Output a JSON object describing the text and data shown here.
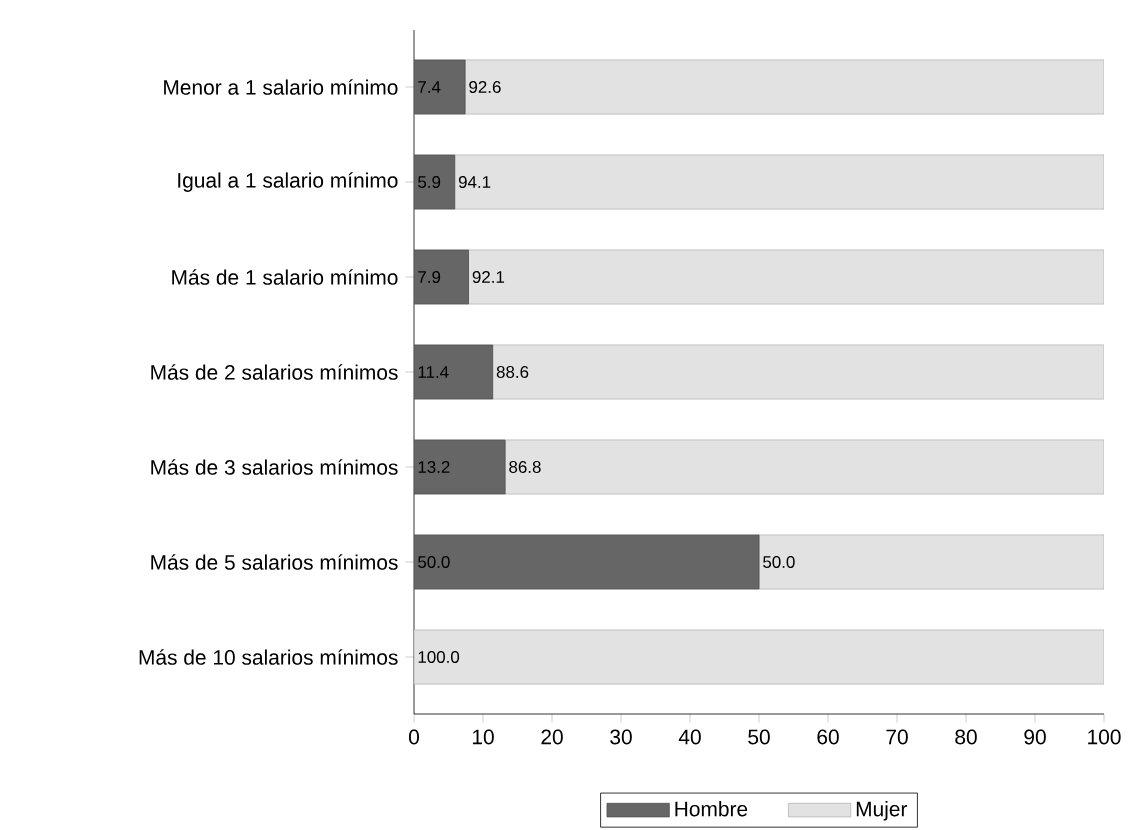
{
  "chart_data": {
    "type": "bar",
    "orientation": "horizontal",
    "stacked": true,
    "categories": [
      "Menor a 1 salario mínimo",
      "Igual a 1 salario mínimo",
      "Más de 1 salario mínimo",
      "Más de 2 salarios mínimos",
      "Más de 3 salarios mínimos",
      "Más de 5 salarios mínimos",
      "Más de 10 salarios mínimos"
    ],
    "series": [
      {
        "name": "Hombre",
        "color": "#666666",
        "values": [
          7.4,
          5.9,
          7.9,
          11.4,
          13.2,
          50.0,
          0
        ],
        "value_labels": [
          "7.4",
          "5.9",
          "7.9",
          "11.4",
          "13.2",
          "50.0",
          null
        ]
      },
      {
        "name": "Mujer",
        "color": "#e2e2e2",
        "values": [
          92.6,
          94.1,
          92.1,
          88.6,
          86.8,
          50.0,
          100.0
        ],
        "value_labels": [
          "92.6",
          "94.1",
          "92.1",
          "88.6",
          "86.8",
          "50.0",
          "100.0"
        ]
      }
    ],
    "xlim": [
      0,
      100
    ],
    "xticks": [
      0,
      10,
      20,
      30,
      40,
      50,
      60,
      70,
      80,
      90,
      100
    ],
    "legend": "bottom"
  }
}
